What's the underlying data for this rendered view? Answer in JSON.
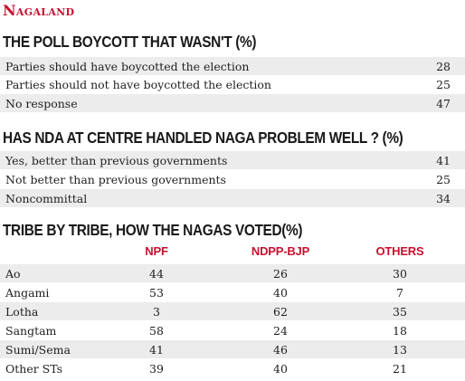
{
  "kicker": "Nagaland",
  "section1": {
    "title": "THE POLL BOYCOTT THAT WASN'T (%)",
    "rows": [
      {
        "label": "Parties should have boycotted the election",
        "value": "28"
      },
      {
        "label": "Parties should not have boycotted the election",
        "value": "25"
      },
      {
        "label": "No response",
        "value": "47"
      }
    ]
  },
  "section2": {
    "title": "HAS NDA AT CENTRE HANDLED NAGA PROBLEM WELL ? (%)",
    "rows": [
      {
        "label": "Yes, better than previous governments",
        "value": "41"
      },
      {
        "label": "Not better than previous governments",
        "value": "25"
      },
      {
        "label": "Noncommittal",
        "value": "34"
      }
    ]
  },
  "section3": {
    "title": "TRIBE BY TRIBE, HOW THE NAGAS VOTED(%)",
    "columns": [
      "NPF",
      "NDPP-BJP",
      "OTHERS"
    ],
    "rows": [
      {
        "tribe": "Ao",
        "npf": "44",
        "ndpp_bjp": "26",
        "others": "30"
      },
      {
        "tribe": "Angami",
        "npf": "53",
        "ndpp_bjp": "40",
        "others": "7"
      },
      {
        "tribe": "Lotha",
        "npf": "3",
        "ndpp_bjp": "62",
        "others": "35"
      },
      {
        "tribe": "Sangtam",
        "npf": "58",
        "ndpp_bjp": "24",
        "others": "18"
      },
      {
        "tribe": "Sumi/Sema",
        "npf": "41",
        "ndpp_bjp": "46",
        "others": "13"
      },
      {
        "tribe": "Other STs",
        "npf": "39",
        "ndpp_bjp": "40",
        "others": "21"
      }
    ]
  },
  "colors": {
    "accent": "#c8102e",
    "shade": "#ececec",
    "text": "#1f1f1f"
  }
}
